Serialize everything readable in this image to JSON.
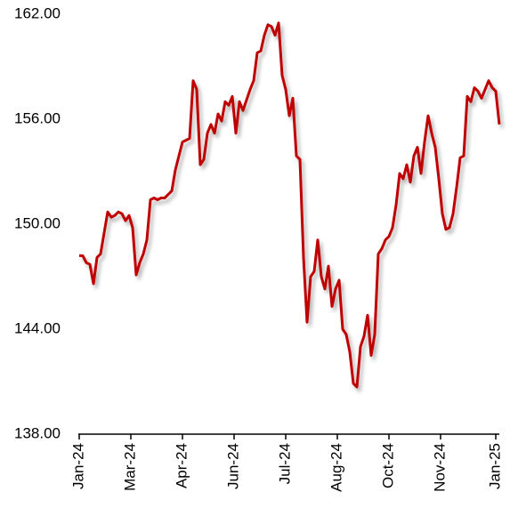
{
  "chart_data": {
    "type": "line",
    "x": [
      0,
      1,
      2,
      3,
      4,
      5,
      6,
      7,
      8,
      9,
      10,
      11,
      12,
      13,
      14,
      15,
      16,
      17,
      18,
      19,
      20,
      21,
      22,
      23,
      24,
      25,
      26,
      27,
      28,
      29,
      30,
      31,
      32,
      33,
      34,
      35,
      36,
      37,
      38,
      39,
      40,
      41,
      42,
      43,
      44,
      45,
      46,
      47,
      48,
      49,
      50,
      51,
      52,
      53,
      54,
      55,
      56,
      57,
      58,
      59,
      60,
      61,
      62,
      63,
      64,
      65,
      66,
      67,
      68,
      69,
      70,
      71,
      72,
      73,
      74,
      75,
      76,
      77,
      78,
      79,
      80,
      81,
      82,
      83,
      84,
      85,
      86,
      87,
      88,
      89,
      90,
      91,
      92,
      93,
      94,
      95,
      96,
      97,
      98,
      99,
      100,
      101,
      102,
      103,
      104,
      105,
      106,
      107,
      108,
      109,
      110,
      111,
      112,
      113,
      114,
      115,
      116,
      117,
      118
    ],
    "series": [
      {
        "color": "#c00000",
        "values": [
          148.2,
          148.2,
          147.8,
          147.7,
          146.6,
          148.1,
          148.3,
          149.5,
          150.7,
          150.4,
          150.5,
          150.7,
          150.6,
          150.2,
          150.5,
          149.8,
          147.1,
          147.8,
          148.3,
          149.1,
          151.4,
          151.5,
          151.4,
          151.5,
          151.5,
          151.7,
          151.9,
          153.1,
          153.9,
          154.7,
          154.8,
          154.9,
          158.2,
          157.7,
          153.4,
          153.7,
          155.2,
          155.7,
          155.2,
          156.3,
          155.9,
          157.0,
          156.8,
          157.3,
          155.2,
          157.0,
          156.5,
          157.1,
          157.7,
          158.2,
          159.8,
          159.9,
          160.8,
          161.4,
          161.3,
          160.8,
          161.5,
          158.5,
          157.7,
          156.2,
          157.2,
          153.9,
          153.7,
          148.1,
          144.4,
          147.0,
          147.3,
          149.1,
          147.0,
          146.3,
          147.6,
          145.3,
          146.3,
          146.8,
          144.0,
          143.7,
          142.7,
          140.9,
          140.7,
          143.0,
          143.6,
          144.8,
          142.5,
          143.7,
          148.3,
          148.6,
          149.1,
          149.3,
          149.8,
          151.1,
          152.9,
          152.6,
          153.4,
          152.4,
          153.9,
          154.4,
          152.9,
          154.7,
          156.2,
          155.2,
          154.4,
          152.6,
          150.6,
          149.7,
          149.8,
          150.6,
          152.1,
          153.8,
          153.9,
          157.3,
          157.0,
          157.8,
          157.6,
          157.2,
          157.7,
          158.2,
          157.8,
          157.6,
          155.7
        ]
      }
    ],
    "xlim": [
      0,
      118
    ],
    "xticks": [
      {
        "value": 0,
        "label": "Jan-24"
      },
      {
        "value": 14.5,
        "label": "Mar-24"
      },
      {
        "value": 29,
        "label": "Apr-24"
      },
      {
        "value": 43.5,
        "label": "Jun-24"
      },
      {
        "value": 58,
        "label": "Jul-24"
      },
      {
        "value": 72.5,
        "label": "Aug-24"
      },
      {
        "value": 87,
        "label": "Oct-24"
      },
      {
        "value": 101.5,
        "label": "Nov-24"
      },
      {
        "value": 117,
        "label": "Jan-25"
      }
    ],
    "ylim": [
      138,
      162
    ],
    "yticks": [
      {
        "value": 138,
        "label": "138.00"
      },
      {
        "value": 144,
        "label": "144.00"
      },
      {
        "value": 150,
        "label": "150.00"
      },
      {
        "value": 156,
        "label": "156.00"
      },
      {
        "value": 162,
        "label": "162.00"
      }
    ]
  }
}
